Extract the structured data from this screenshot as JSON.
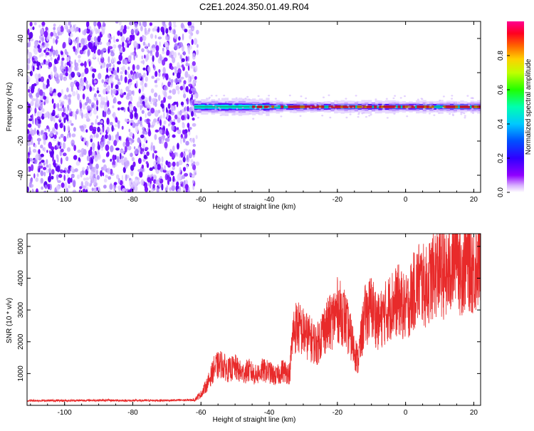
{
  "title": "C2E1.2024.350.01.49.R04",
  "colors": {
    "signal": "#e82a2a",
    "noise_dark": "#6a00ff",
    "noise_light": "#c8a8ff",
    "background": "#ffffff",
    "colorbar": [
      "#ff00ff",
      "#7000ff",
      "#0000ff",
      "#00a0ff",
      "#00ffff",
      "#00ff60",
      "#60ff00",
      "#ffff00",
      "#ff8000",
      "#ff0000",
      "#ff0080"
    ]
  },
  "chart_data": [
    {
      "type": "heatmap",
      "name": "spectrogram",
      "xlabel": "Height of straight line (km)",
      "ylabel": "Frequency (Hz)",
      "xlim": [
        -111,
        22
      ],
      "ylim": [
        -50,
        50
      ],
      "xticks": [
        -100,
        -80,
        -60,
        -40,
        -20,
        0,
        20
      ],
      "yticks": [
        -40,
        -20,
        0,
        20,
        40
      ],
      "xtick_labels": [
        "-100",
        "-80",
        "-60",
        "-40",
        "-20",
        "0",
        "20"
      ],
      "ytick_labels": [
        "-40",
        "-20",
        "0",
        "20",
        "40"
      ],
      "noise_region_x": [
        -111,
        -61
      ],
      "signal_start_x": -62,
      "signal_center_frequency": 0,
      "colorbar": {
        "label": "Normalized spectral amplitude",
        "range": [
          0,
          1
        ],
        "ticks": [
          0.0,
          0.2,
          0.4,
          0.6,
          0.8
        ],
        "tick_labels": [
          "0.0",
          "0.2",
          "0.4",
          "0.6",
          "0.8"
        ]
      }
    },
    {
      "type": "line",
      "name": "snr",
      "xlabel": "Height of straight line (km)",
      "ylabel": "SNR (10 * v/v)",
      "xlim": [
        -111,
        22
      ],
      "ylim": [
        0,
        5400
      ],
      "xticks": [
        -100,
        -80,
        -60,
        -40,
        -20,
        0,
        20
      ],
      "yticks": [
        1000,
        2000,
        3000,
        4000,
        5000
      ],
      "xtick_labels": [
        "-100",
        "-80",
        "-60",
        "-40",
        "-20",
        "0",
        "20"
      ],
      "ytick_labels": [
        "1000",
        "2000",
        "3000",
        "4000",
        "5000"
      ],
      "x": [
        -111,
        -100,
        -90,
        -80,
        -70,
        -62,
        -60,
        -58,
        -56,
        -54,
        -52,
        -50,
        -48,
        -46,
        -44,
        -42,
        -40,
        -38,
        -36,
        -34,
        -33,
        -32,
        -30,
        -28,
        -26,
        -24,
        -22,
        -20,
        -18,
        -16,
        -14,
        -12,
        -10,
        -8,
        -6,
        -4,
        -2,
        0,
        2,
        4,
        6,
        8,
        10,
        12,
        14,
        15,
        16,
        18,
        20,
        22
      ],
      "y": [
        150,
        150,
        160,
        150,
        155,
        170,
        350,
        700,
        1200,
        1300,
        1100,
        1200,
        1000,
        1100,
        950,
        1100,
        1050,
        900,
        1100,
        1000,
        2300,
        2500,
        2300,
        2100,
        1900,
        2400,
        2600,
        3000,
        2800,
        2100,
        1400,
        2800,
        3100,
        2600,
        2900,
        3200,
        3300,
        3000,
        3500,
        3900,
        3700,
        4100,
        4300,
        4000,
        4500,
        5300,
        4200,
        4600,
        4300,
        4700
      ]
    }
  ]
}
